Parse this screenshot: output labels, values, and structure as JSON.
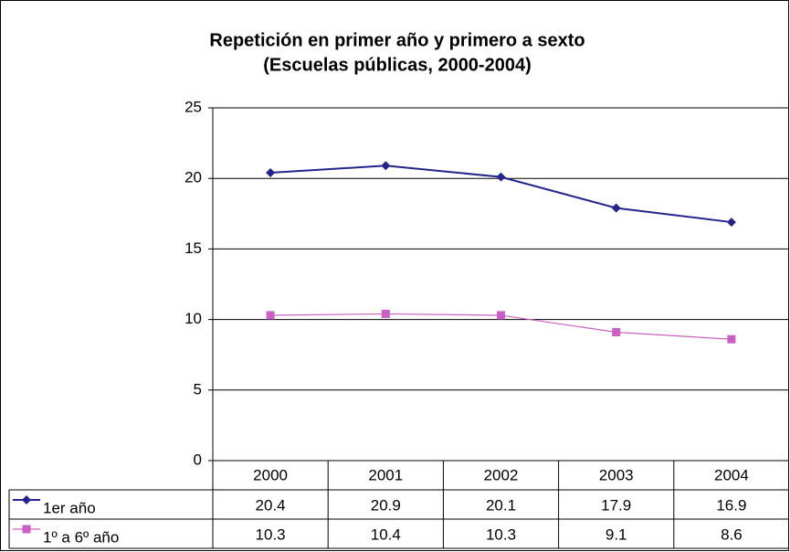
{
  "chart_data": {
    "type": "line",
    "title": "Repetición en primer año y primero a sexto",
    "subtitle": "(Escuelas públicas, 2000-2004)",
    "categories": [
      "2000",
      "2001",
      "2002",
      "2003",
      "2004"
    ],
    "series": [
      {
        "name": "1er año",
        "color": "#24248c",
        "marker": "diamond",
        "values": [
          20.4,
          20.9,
          20.1,
          17.9,
          16.9
        ]
      },
      {
        "name": "1º a 6º año",
        "color": "#cc5fc4",
        "marker": "square",
        "values": [
          10.3,
          10.4,
          10.3,
          9.1,
          8.6
        ]
      }
    ],
    "ylim": [
      0,
      25
    ],
    "yticks": [
      0,
      5,
      10,
      15,
      20,
      25
    ],
    "grid": true
  }
}
